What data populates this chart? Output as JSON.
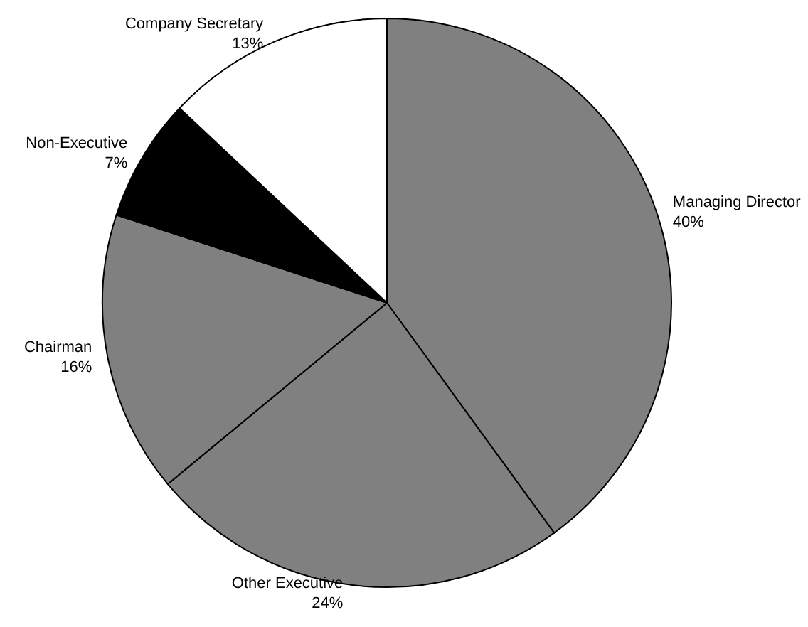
{
  "chart_data": {
    "type": "pie",
    "categories": [
      "Managing Director",
      "Other Executive",
      "Chairman",
      "Non-Executive",
      "Company Secretary"
    ],
    "values": [
      40,
      24,
      16,
      7,
      13
    ],
    "colors": [
      "#808080",
      "#808080",
      "#808080",
      "#000000",
      "#ffffff"
    ],
    "value_labels": [
      "40%",
      "24%",
      "16%",
      "7%",
      "13%"
    ],
    "legend": false
  }
}
